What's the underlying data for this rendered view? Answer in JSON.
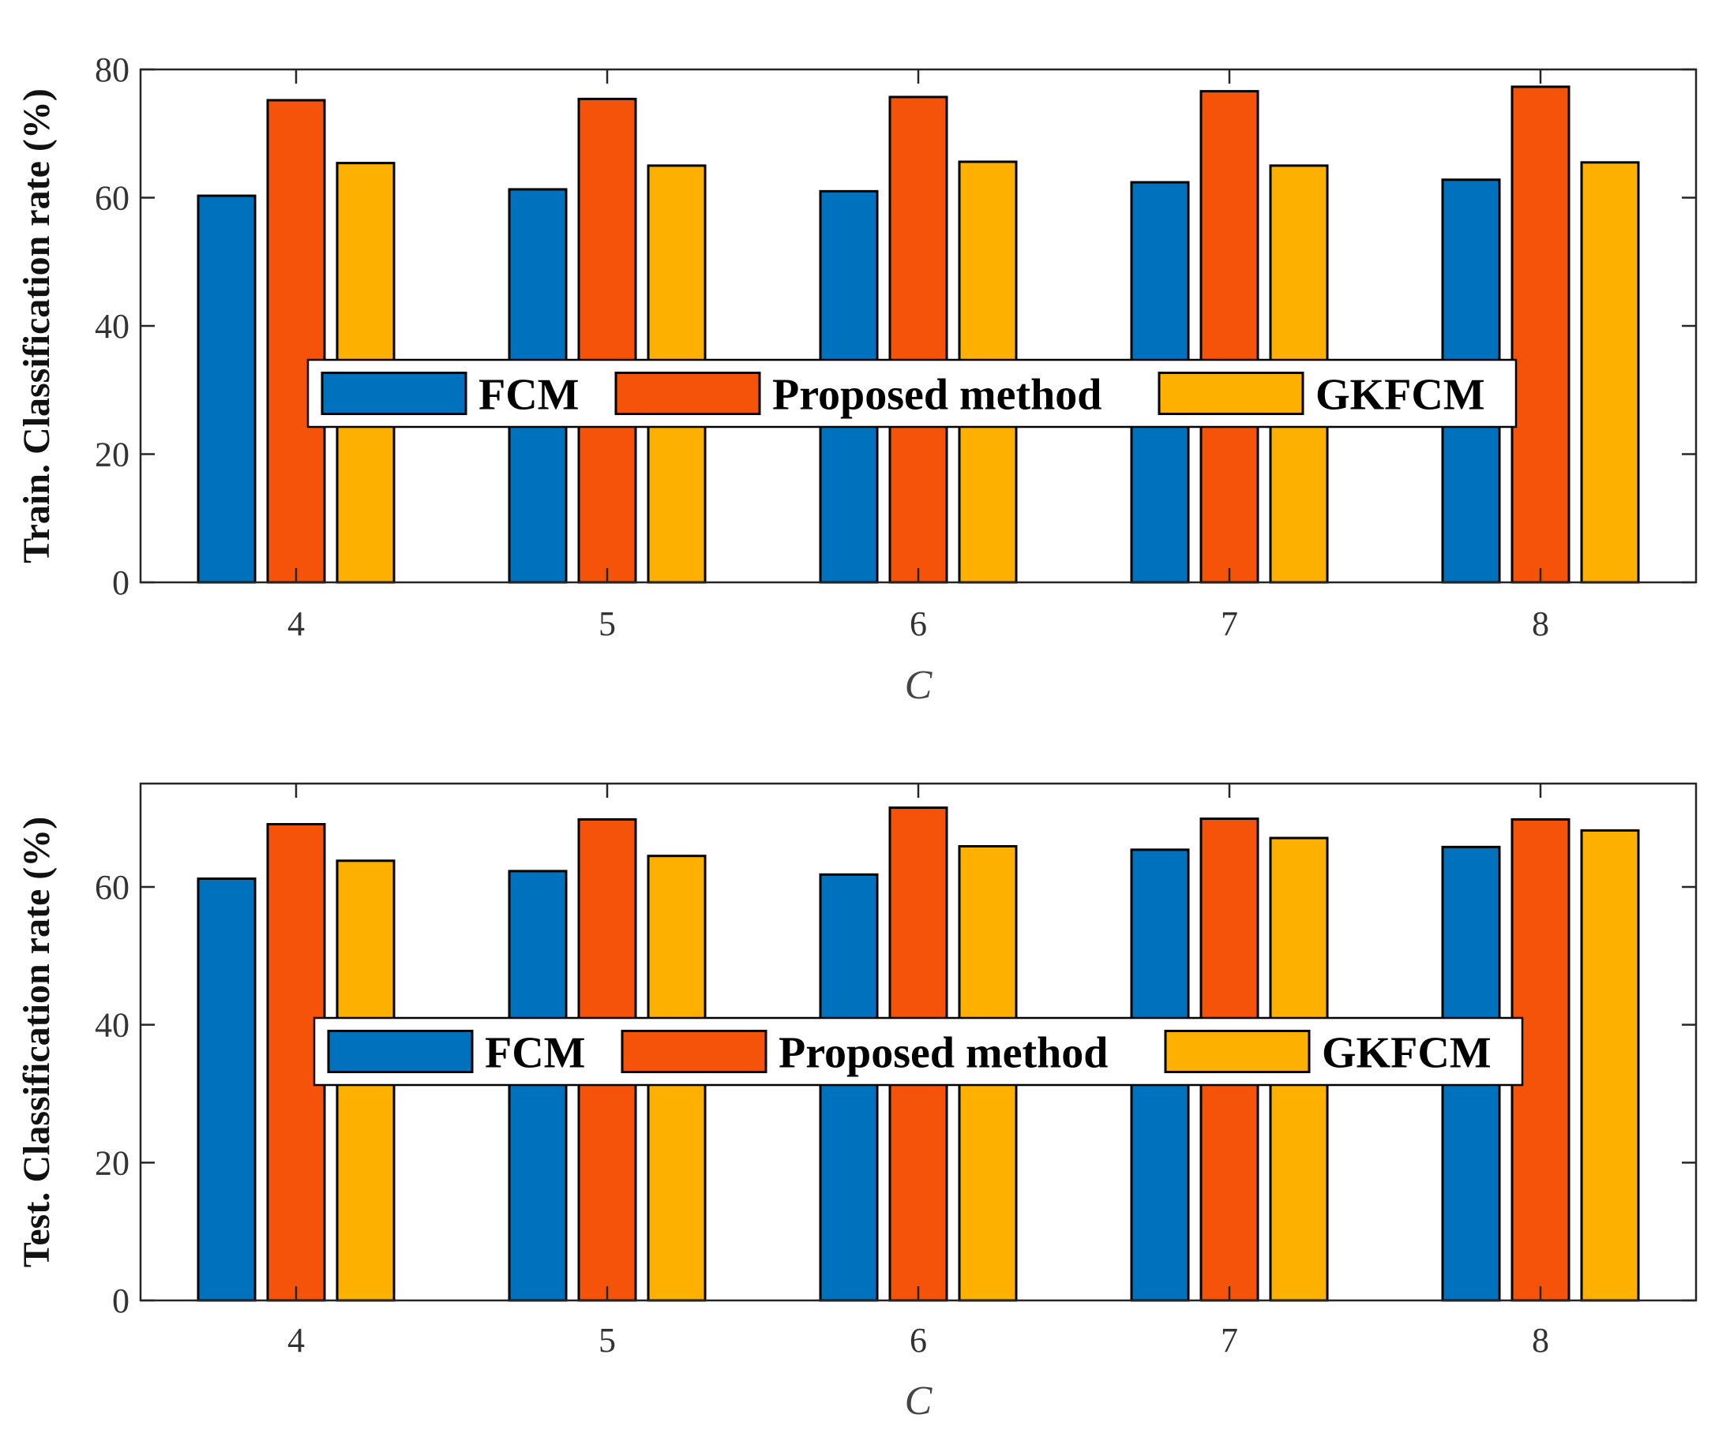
{
  "chart_data": [
    {
      "type": "bar",
      "id": "train",
      "categories": [
        "4",
        "5",
        "6",
        "7",
        "8"
      ],
      "series": [
        {
          "name": "FCM",
          "color": "#0072BD",
          "values": [
            60.3,
            61.3,
            61.0,
            62.4,
            62.8
          ]
        },
        {
          "name": "Proposed method",
          "color": "#F5530A",
          "values": [
            75.2,
            75.4,
            75.7,
            76.6,
            77.3
          ]
        },
        {
          "name": "GKFCM",
          "color": "#FDB000",
          "values": [
            65.4,
            65.0,
            65.6,
            65.0,
            65.5
          ]
        }
      ],
      "title": "",
      "xlabel": "C",
      "ylabel": "Train. Classification rate (%)",
      "ylim": [
        0,
        80
      ],
      "yticks": [
        0,
        20,
        40,
        60,
        80
      ],
      "legend": "center, horizontal"
    },
    {
      "type": "bar",
      "id": "test",
      "categories": [
        "4",
        "5",
        "6",
        "7",
        "8"
      ],
      "series": [
        {
          "name": "FCM",
          "color": "#0072BD",
          "values": [
            61.2,
            62.3,
            61.8,
            65.4,
            65.8
          ]
        },
        {
          "name": "Proposed method",
          "color": "#F5530A",
          "values": [
            69.1,
            69.8,
            71.5,
            69.9,
            69.8
          ]
        },
        {
          "name": "GKFCM",
          "color": "#FDB000",
          "values": [
            63.8,
            64.5,
            65.9,
            67.1,
            68.2
          ]
        }
      ],
      "title": "",
      "xlabel": "C",
      "ylabel": "Test. Classification rate (%)",
      "ylim": [
        0,
        75
      ],
      "yticks": [
        0,
        20,
        40,
        60
      ],
      "legend": "center, horizontal"
    }
  ]
}
